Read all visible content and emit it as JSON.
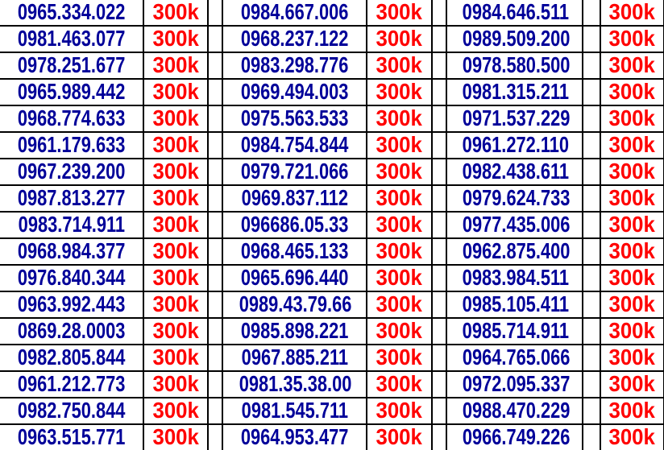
{
  "colors": {
    "phone_text": "#000099",
    "price_text": "#ff0000",
    "grid_lines": "#000000",
    "background": "#ffffff"
  },
  "table": {
    "description": "SIM phone number price list, 3 column groups of phone + price",
    "price_all": "300k",
    "rows": [
      {
        "cols": [
          {
            "phone": "0965.334.022",
            "price": "300k"
          },
          {
            "phone": "0984.667.006",
            "price": "300k"
          },
          {
            "phone": "0984.646.511",
            "price": "300k"
          }
        ]
      },
      {
        "cols": [
          {
            "phone": "0981.463.077",
            "price": "300k"
          },
          {
            "phone": "0968.237.122",
            "price": "300k"
          },
          {
            "phone": "0989.509.200",
            "price": "300k"
          }
        ]
      },
      {
        "cols": [
          {
            "phone": "0978.251.677",
            "price": "300k"
          },
          {
            "phone": "0983.298.776",
            "price": "300k"
          },
          {
            "phone": "0978.580.500",
            "price": "300k"
          }
        ]
      },
      {
        "cols": [
          {
            "phone": "0965.989.442",
            "price": "300k"
          },
          {
            "phone": "0969.494.003",
            "price": "300k"
          },
          {
            "phone": "0981.315.211",
            "price": "300k"
          }
        ]
      },
      {
        "cols": [
          {
            "phone": "0968.774.633",
            "price": "300k"
          },
          {
            "phone": "0975.563.533",
            "price": "300k"
          },
          {
            "phone": "0971.537.229",
            "price": "300k"
          }
        ]
      },
      {
        "cols": [
          {
            "phone": "0961.179.633",
            "price": "300k"
          },
          {
            "phone": "0984.754.844",
            "price": "300k"
          },
          {
            "phone": "0961.272.110",
            "price": "300k"
          }
        ]
      },
      {
        "cols": [
          {
            "phone": "0967.239.200",
            "price": "300k"
          },
          {
            "phone": "0979.721.066",
            "price": "300k"
          },
          {
            "phone": "0982.438.611",
            "price": "300k"
          }
        ]
      },
      {
        "cols": [
          {
            "phone": "0987.813.277",
            "price": "300k"
          },
          {
            "phone": "0969.837.112",
            "price": "300k"
          },
          {
            "phone": "0979.624.733",
            "price": "300k"
          }
        ]
      },
      {
        "cols": [
          {
            "phone": "0983.714.911",
            "price": "300k"
          },
          {
            "phone": "096686.05.33",
            "price": "300k"
          },
          {
            "phone": "0977.435.006",
            "price": "300k"
          }
        ]
      },
      {
        "cols": [
          {
            "phone": "0968.984.377",
            "price": "300k"
          },
          {
            "phone": "0968.465.133",
            "price": "300k"
          },
          {
            "phone": "0962.875.400",
            "price": "300k"
          }
        ]
      },
      {
        "cols": [
          {
            "phone": "0976.840.344",
            "price": "300k"
          },
          {
            "phone": "0965.696.440",
            "price": "300k"
          },
          {
            "phone": "0983.984.511",
            "price": "300k"
          }
        ]
      },
      {
        "cols": [
          {
            "phone": "0963.992.443",
            "price": "300k"
          },
          {
            "phone": "0989.43.79.66",
            "price": "300k"
          },
          {
            "phone": "0985.105.411",
            "price": "300k"
          }
        ]
      },
      {
        "cols": [
          {
            "phone": "0869.28.0003",
            "price": "300k"
          },
          {
            "phone": "0985.898.221",
            "price": "300k"
          },
          {
            "phone": "0985.714.911",
            "price": "300k"
          }
        ]
      },
      {
        "cols": [
          {
            "phone": "0982.805.844",
            "price": "300k"
          },
          {
            "phone": "0967.885.211",
            "price": "300k"
          },
          {
            "phone": "0964.765.066",
            "price": "300k"
          }
        ]
      },
      {
        "cols": [
          {
            "phone": "0961.212.773",
            "price": "300k"
          },
          {
            "phone": "0981.35.38.00",
            "price": "300k"
          },
          {
            "phone": "0972.095.337",
            "price": "300k"
          }
        ]
      },
      {
        "cols": [
          {
            "phone": "0982.750.844",
            "price": "300k"
          },
          {
            "phone": "0981.545.711",
            "price": "300k"
          },
          {
            "phone": "0988.470.229",
            "price": "300k"
          }
        ]
      },
      {
        "cols": [
          {
            "phone": "0963.515.771",
            "price": "300k"
          },
          {
            "phone": "0964.953.477",
            "price": "300k"
          },
          {
            "phone": "0966.749.226",
            "price": "300k"
          }
        ]
      }
    ]
  }
}
